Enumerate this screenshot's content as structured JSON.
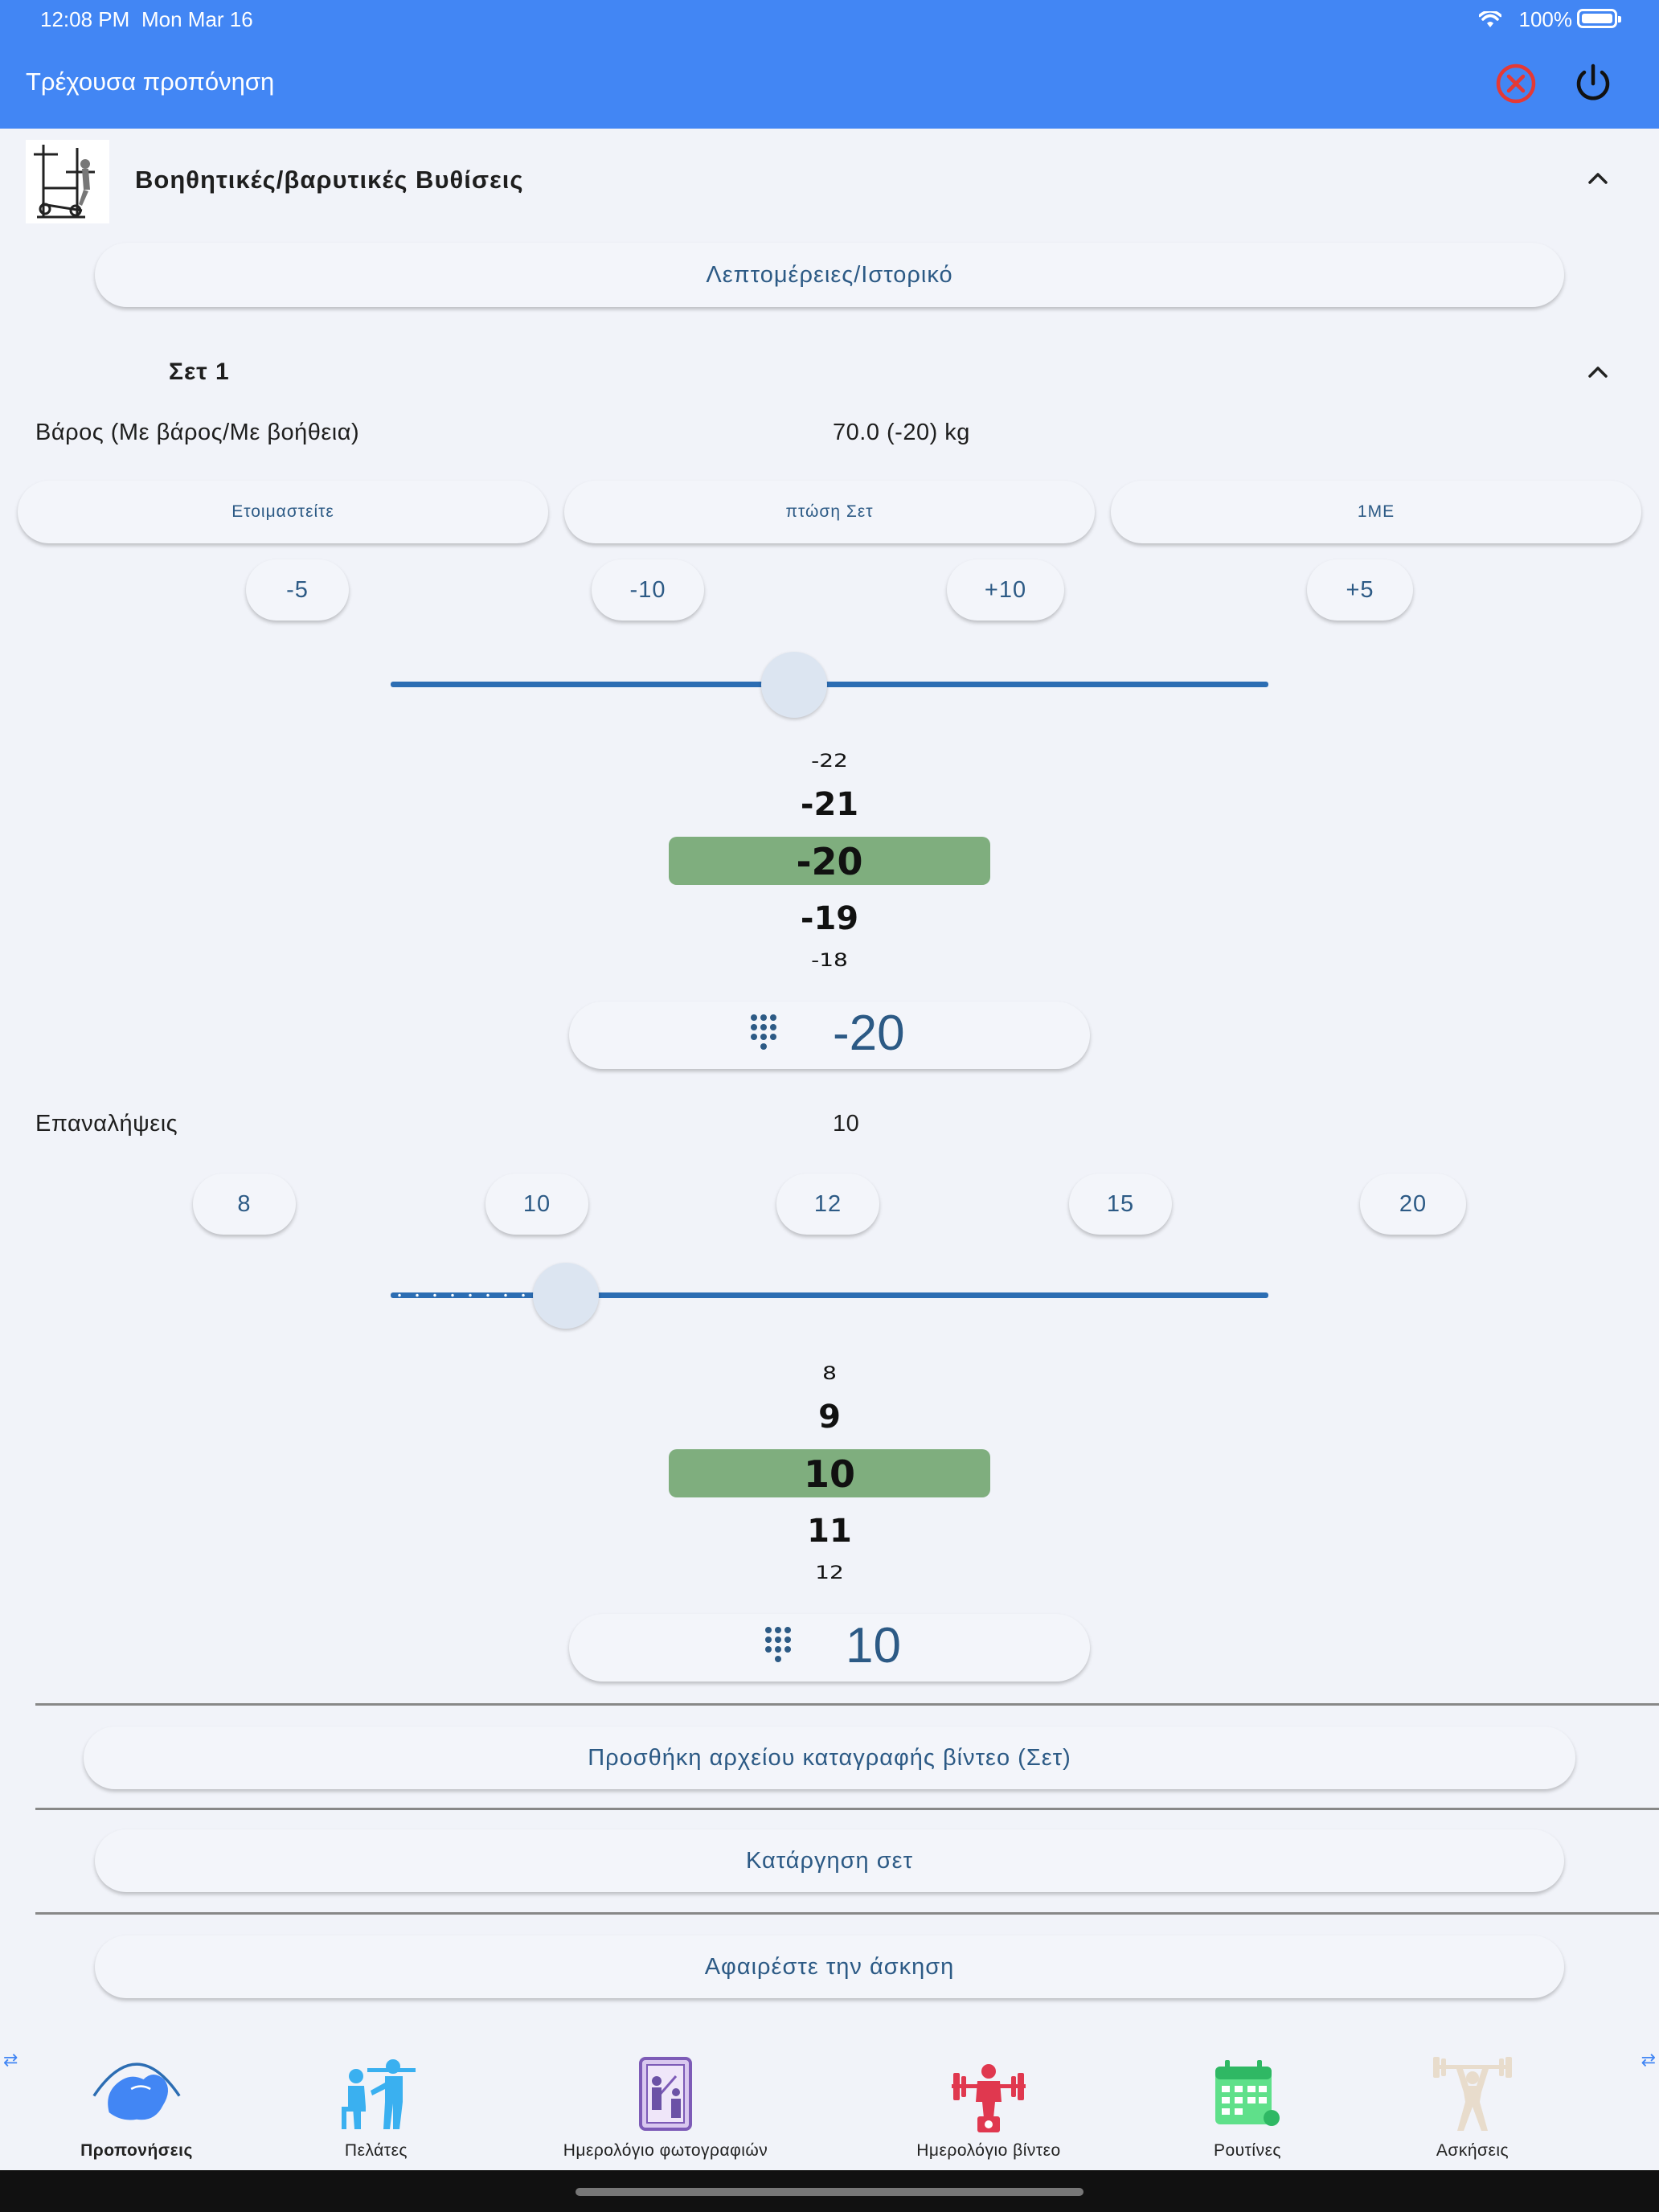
{
  "status_bar": {
    "time": "12:08 PM",
    "date": "Mon Mar 16",
    "battery": "100%"
  },
  "app_bar": {
    "title": "Τρέχουσα προπόνηση",
    "cancel_icon": "close-circle-icon",
    "power_icon": "power-icon",
    "cancel_color": "#e53935"
  },
  "exercise": {
    "name": "Βοηθητικές/βαρυτικές Βυθίσεις",
    "details_button": "Λεπτομέρειες/Ιστορικό"
  },
  "set": {
    "title": "Σετ 1",
    "weight": {
      "label": "Βάρος (Με βάρος/Με βοήθεια)",
      "value": "70.0 (-20) kg",
      "type_buttons": [
        "Ετοιμαστείτε",
        "πτώση Σετ",
        "1ΜΕ"
      ],
      "step_buttons": [
        "-5",
        "-10",
        "+10",
        "+5"
      ],
      "slider_level": 0.46,
      "wheel": [
        "-22",
        "-21",
        "-20",
        "-19",
        "-18"
      ],
      "input_value": "-20"
    },
    "reps": {
      "label": "Επαναλήψεις",
      "value": "10",
      "quick_buttons": [
        "8",
        "10",
        "12",
        "15",
        "20"
      ],
      "slider_level": 0.2,
      "wheel": [
        "8",
        "9",
        "10",
        "11",
        "12"
      ],
      "input_value": "10"
    }
  },
  "actions": {
    "add_video": "Προσθήκη αρχείου καταγραφής βίντεο (Σετ)",
    "remove_set": "Κατάργηση σετ",
    "remove_exercise": "Αφαιρέστε την άσκηση"
  },
  "bottom_nav": [
    {
      "label": "Προπονήσεις",
      "icon": "flexed-arm-icon",
      "active": true
    },
    {
      "label": "Πελάτες",
      "icon": "trainer-client-icon",
      "active": false
    },
    {
      "label": "Ημερολόγιο φωτογραφιών",
      "icon": "photo-mirror-icon",
      "active": false
    },
    {
      "label": "Ημερολόγιο βίντεο",
      "icon": "weightlifter-video-icon",
      "active": false
    },
    {
      "label": "Ρουτίνες",
      "icon": "calendar-icon",
      "active": false
    },
    {
      "label": "Ασκήσεις",
      "icon": "weightlifter-icon",
      "active": false
    }
  ],
  "colors": {
    "primary": "#4286f4",
    "accent_text": "#2c5a85",
    "highlight": "#7fae7e",
    "slider": "#2c6db3"
  }
}
